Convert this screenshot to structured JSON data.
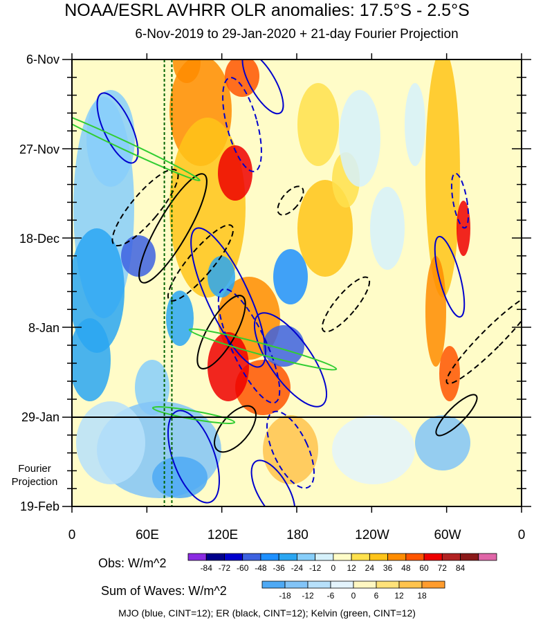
{
  "chart_data": {
    "type": "heatmap",
    "title": "NOAA/ESRL AVHRR OLR anomalies: 17.5°S - 2.5°S",
    "subtitle": "6-Nov-2019 to 29-Jan-2020 + 21-day Fourier Projection",
    "x_axis": {
      "ticks": [
        "0",
        "60E",
        "120E",
        "180",
        "120W",
        "60W",
        "0"
      ],
      "tick_values": [
        0,
        60,
        120,
        180,
        240,
        300,
        360
      ],
      "range": [
        0,
        360
      ]
    },
    "y_axis": {
      "ticks": [
        "6-Nov",
        "27-Nov",
        "18-Dec",
        "8-Jan",
        "29-Jan",
        "19-Feb"
      ],
      "range": [
        "6-Nov",
        "19-Feb"
      ],
      "projection_start": "29-Jan",
      "projection_label": "Fourier Projection"
    },
    "obs_colorbar": {
      "title": "Obs: W/m^2",
      "levels": [
        -84,
        -72,
        -60,
        -48,
        -36,
        -24,
        -12,
        0,
        12,
        24,
        36,
        48,
        60,
        72,
        84
      ],
      "colors": [
        "#8a2be2",
        "#00008b",
        "#0000cd",
        "#3d62e0",
        "#1e90ff",
        "#2aa6f2",
        "#87cefa",
        "#d6f1fb",
        "#fffcc8",
        "#ffe14d",
        "#ffc419",
        "#ff8c00",
        "#ff5500",
        "#ee0000",
        "#b22222",
        "#8b1a1a",
        "#e066a8"
      ]
    },
    "waves_colorbar": {
      "title": "Sum of Waves: W/m^2",
      "levels": [
        -18,
        -12,
        -6,
        0,
        6,
        12,
        18
      ],
      "colors": [
        "#4ea9f4",
        "#82c4f7",
        "#b7e0fa",
        "#e3f3fc",
        "#fff7c2",
        "#ffe27a",
        "#ffc34d",
        "#ff9c2e"
      ]
    },
    "footer": "MJO (blue, CINT=12); ER (black, CINT=12); Kelvin (green, CINT=12)",
    "reference_lines": [
      {
        "style": "dashed",
        "color": "#006400",
        "x": [
          74,
          80
        ]
      }
    ]
  }
}
